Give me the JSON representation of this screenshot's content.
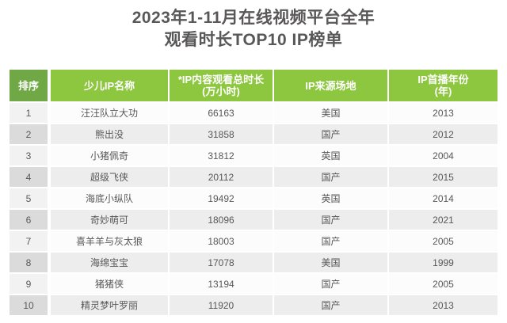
{
  "title": {
    "line1": "2023年1-11月在线视频平台全年",
    "line2": "观看时长TOP10 IP榜单"
  },
  "colors": {
    "header_rank_bg": "#6FA844",
    "header_bg": "#8DC63F",
    "header_text": "#FFFFFF",
    "title_text": "#595757",
    "cell_text": "#595757",
    "row_odd_rank_bg": "#F2F2F2",
    "row_odd_bg": "#FCFCFC",
    "row_even_rank_bg": "#DBDBDB",
    "row_even_bg": "#EDEDED"
  },
  "table": {
    "headers": {
      "rank": "排序",
      "name": "少儿IP名称",
      "hours_line1": "*IP内容观看总时长",
      "hours_line2": "(万小时)",
      "source": "IP来源场地",
      "year_line1": "IP首播年份",
      "year_line2": "(年)"
    },
    "rows": [
      {
        "rank": "1",
        "name": "汪汪队立大功",
        "hours": "66163",
        "source": "美国",
        "year": "2013"
      },
      {
        "rank": "2",
        "name": "熊出没",
        "hours": "31858",
        "source": "国产",
        "year": "2012"
      },
      {
        "rank": "3",
        "name": "小猪佩奇",
        "hours": "31812",
        "source": "英国",
        "year": "2004"
      },
      {
        "rank": "4",
        "name": "超级飞侠",
        "hours": "20112",
        "source": "国产",
        "year": "2015"
      },
      {
        "rank": "5",
        "name": "海底小纵队",
        "hours": "19492",
        "source": "英国",
        "year": "2014"
      },
      {
        "rank": "6",
        "name": "奇妙萌可",
        "hours": "18096",
        "source": "国产",
        "year": "2021"
      },
      {
        "rank": "7",
        "name": "喜羊羊与灰太狼",
        "hours": "18003",
        "source": "国产",
        "year": "2005"
      },
      {
        "rank": "8",
        "name": "海绵宝宝",
        "hours": "17078",
        "source": "美国",
        "year": "1999"
      },
      {
        "rank": "9",
        "name": "猪猪侠",
        "hours": "13194",
        "source": "国产",
        "year": "2005"
      },
      {
        "rank": "10",
        "name": "精灵梦叶罗丽",
        "hours": "11920",
        "source": "国产",
        "year": "2013"
      }
    ]
  },
  "chart_data": {
    "type": "table",
    "title": "2023年1-11月在线视频平台全年观看时长TOP10 IP榜单",
    "columns": [
      "排序",
      "少儿IP名称",
      "*IP内容观看总时长(万小时)",
      "IP来源场地",
      "IP首播年份(年)"
    ],
    "rows": [
      [
        1,
        "汪汪队立大功",
        66163,
        "美国",
        2013
      ],
      [
        2,
        "熊出没",
        31858,
        "国产",
        2012
      ],
      [
        3,
        "小猪佩奇",
        31812,
        "英国",
        2004
      ],
      [
        4,
        "超级飞侠",
        20112,
        "国产",
        2015
      ],
      [
        5,
        "海底小纵队",
        19492,
        "英国",
        2014
      ],
      [
        6,
        "奇妙萌可",
        18096,
        "国产",
        2021
      ],
      [
        7,
        "喜羊羊与灰太狼",
        18003,
        "国产",
        2005
      ],
      [
        8,
        "海绵宝宝",
        17078,
        "美国",
        1999
      ],
      [
        9,
        "猪猪侠",
        13194,
        "国产",
        2005
      ],
      [
        10,
        "精灵梦叶罗丽",
        11920,
        "国产",
        2013
      ]
    ]
  }
}
